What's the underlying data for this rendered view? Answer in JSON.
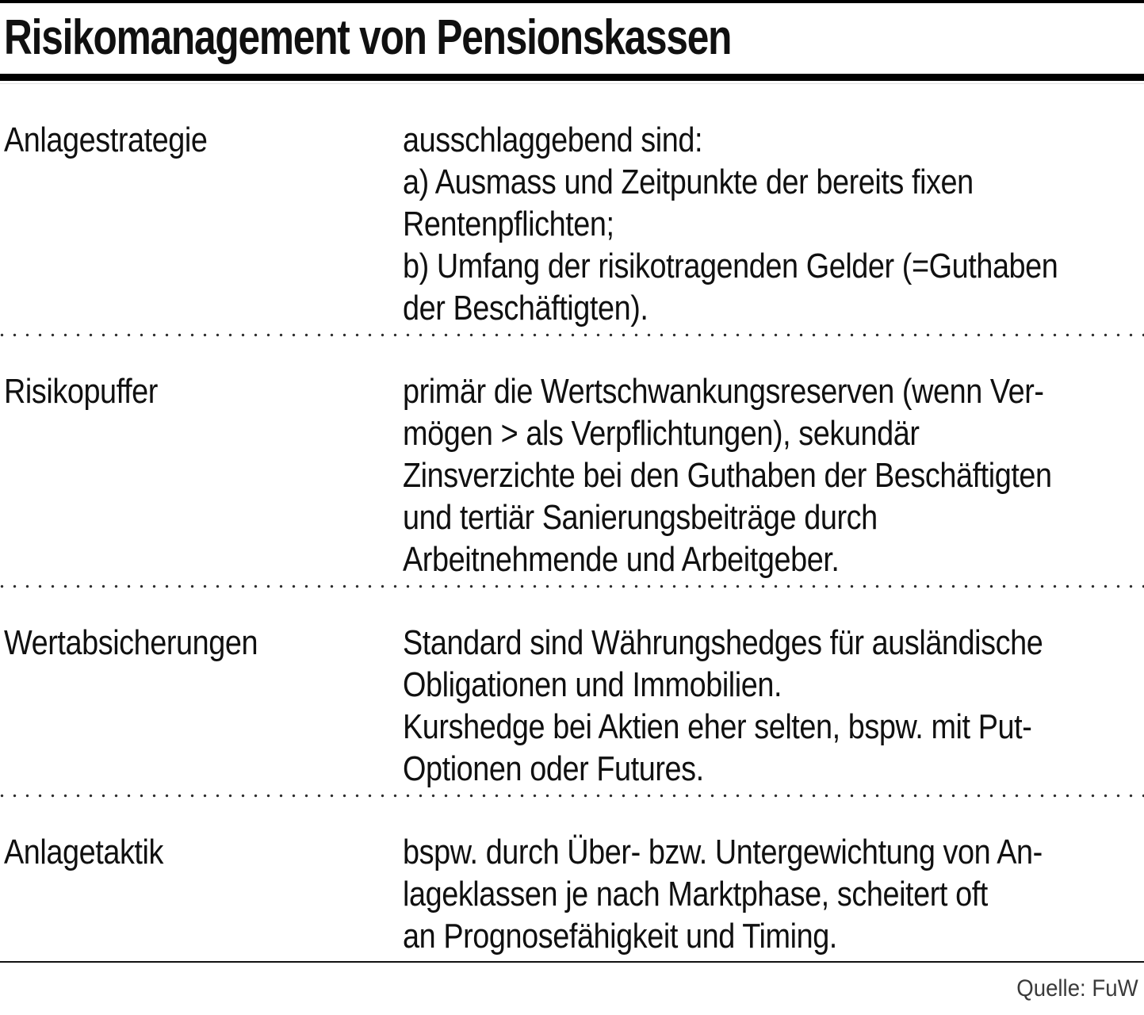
{
  "header": {
    "title": "Risikomanagement von Pensionskassen"
  },
  "table": {
    "rows": [
      {
        "term": "Anlagestrategie",
        "lines": [
          "ausschlaggebend sind:",
          "a) Ausmass und Zeitpunkte der bereits fixen",
          "Rentenpflichten;",
          "b) Umfang der risikotragenden Gelder (=Guthaben",
          "der Beschäftigten)."
        ]
      },
      {
        "term": "Risikopuffer",
        "lines": [
          "primär die Wertschwankungsreserven (wenn Ver-",
          "mögen > als Verpflichtungen), sekundär",
          "Zinsverzichte bei den Guthaben der Beschäftigten",
          "und tertiär Sanierungsbeiträge durch",
          "Arbeitnehmende und Arbeitgeber."
        ]
      },
      {
        "term": "Wertabsicherungen",
        "lines": [
          "Standard sind Währungshedges für ausländische",
          "Obligationen und Immobilien.",
          "Kurshedge bei Aktien eher selten, bspw. mit Put-",
          "Optionen oder Futures."
        ]
      },
      {
        "term": "Anlagetaktik",
        "lines": [
          "bspw. durch Über- bzw. Untergewichtung von An-",
          "lageklassen je nach Marktphase, scheitert oft",
          "an Prognosefähigkeit und Timing."
        ]
      }
    ]
  },
  "footer": {
    "source": "Quelle: FuW"
  },
  "colors": {
    "text": "#101010",
    "rule": "#000000",
    "dots": "#2e2e2e",
    "source_text": "#3a3a3a"
  }
}
